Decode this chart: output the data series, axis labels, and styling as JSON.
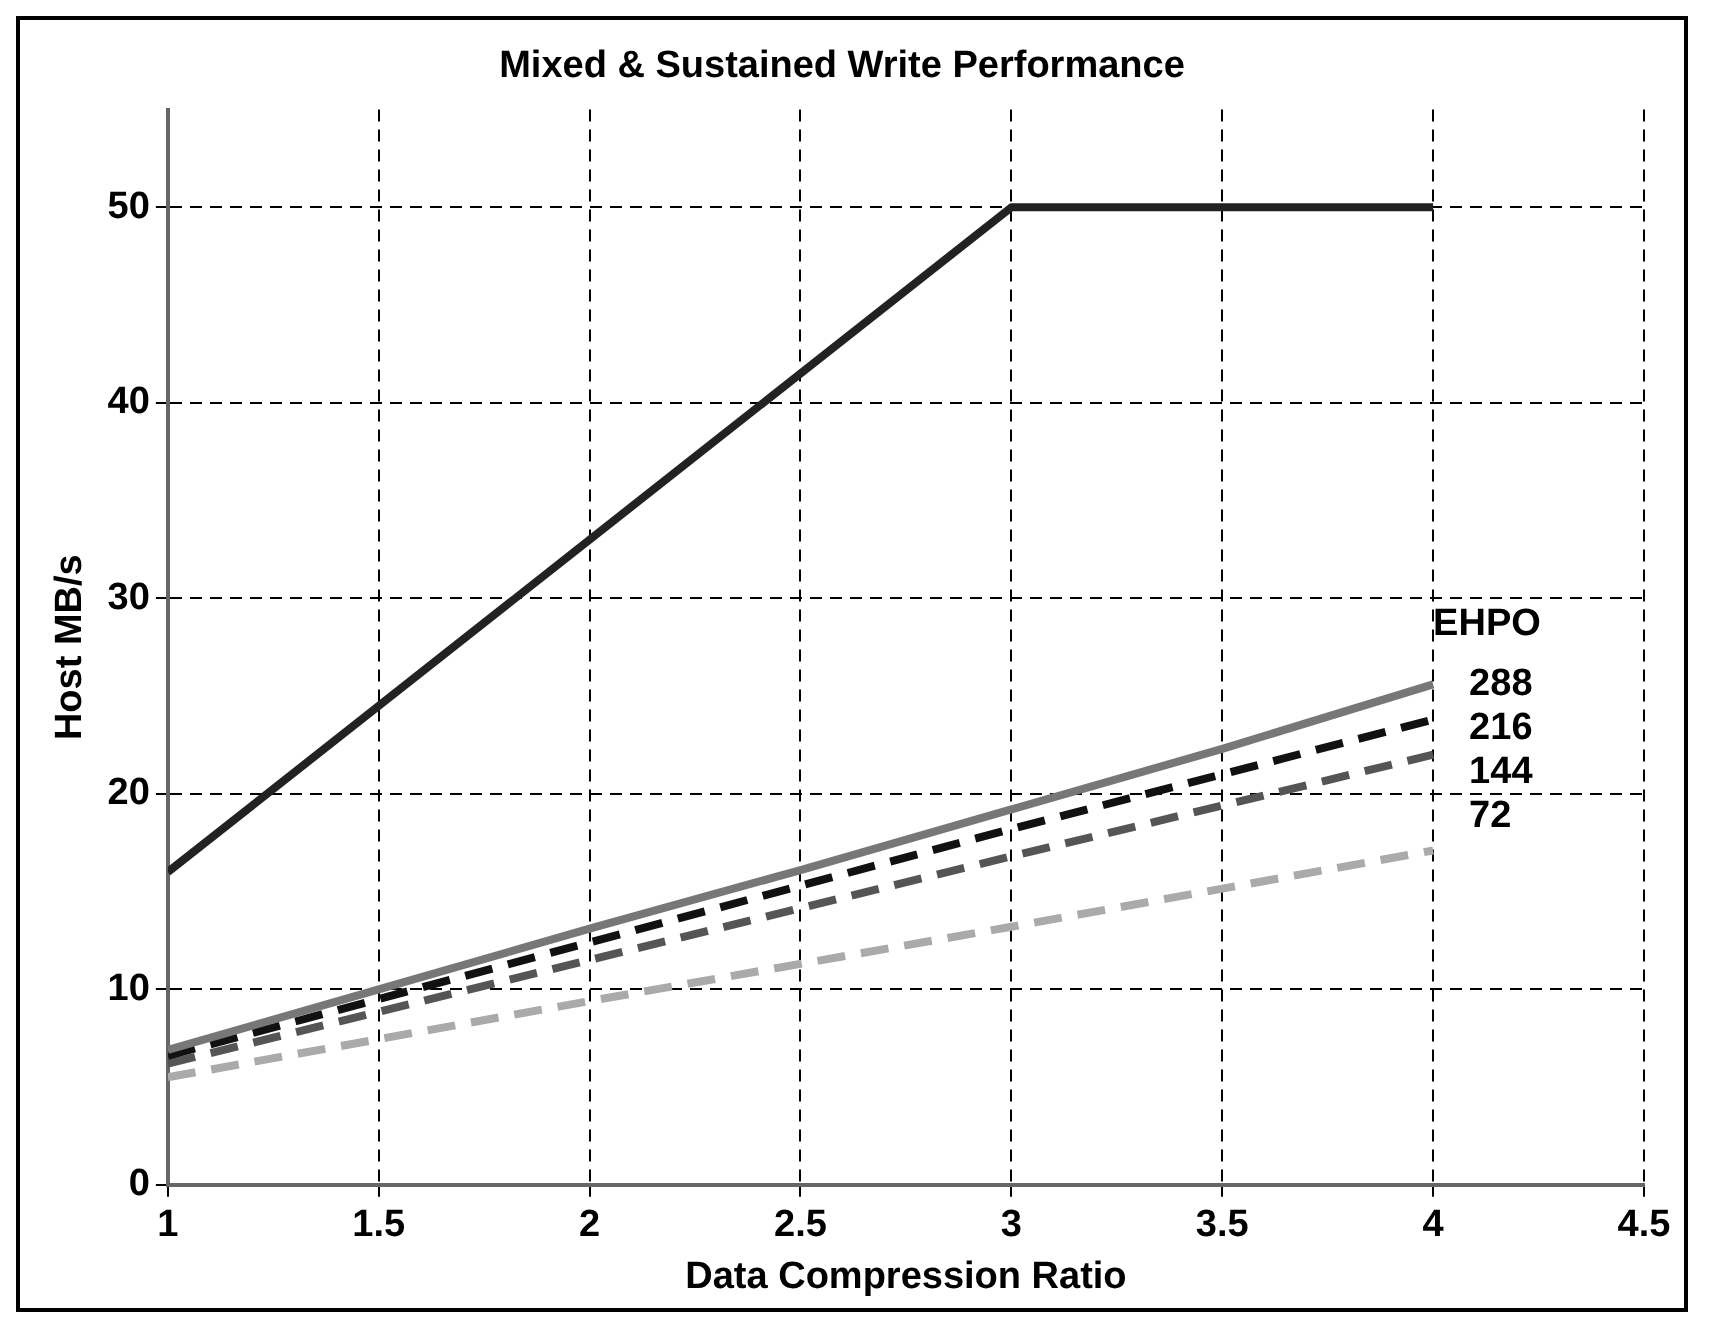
{
  "chart_data": {
    "type": "line",
    "title": "Mixed & Sustained Write Performance",
    "xlabel": "Data Compression Ratio",
    "ylabel": "Host MB/s",
    "legend_title": "EHPO",
    "xlim": [
      1,
      4.5
    ],
    "xticks": [
      1,
      1.5,
      2,
      2.5,
      3,
      3.5,
      4,
      4.5
    ],
    "ylim": [
      0,
      55
    ],
    "yticks": [
      0,
      10,
      20,
      30,
      40,
      50
    ],
    "grid": true,
    "legend": false,
    "marker": "none",
    "series": [
      {
        "color": "#222222",
        "line_style": "solid",
        "x": [
          1,
          3,
          4
        ],
        "values": [
          16,
          50,
          50
        ]
      },
      {
        "name": "288",
        "color": "#777777",
        "line_style": "solid",
        "x": [
          1,
          1.5,
          2,
          2.5,
          3,
          3.5,
          4
        ],
        "values": [
          6.9,
          10,
          13.1,
          16.1,
          19.2,
          22.3,
          25.6
        ]
      },
      {
        "name": "216",
        "color": "#111111",
        "line_style": "dashed",
        "x": [
          1,
          2,
          3,
          4
        ],
        "values": [
          6.6,
          12.4,
          18.2,
          23.8
        ]
      },
      {
        "name": "144",
        "color": "#555555",
        "line_style": "dashed",
        "x": [
          1,
          2,
          3,
          4
        ],
        "values": [
          6.2,
          11.5,
          16.8,
          22
        ]
      },
      {
        "name": "72",
        "color": "#aaaaaa",
        "line_style": "dashed",
        "x": [
          1,
          2,
          3,
          4
        ],
        "values": [
          5.5,
          9.4,
          13.2,
          17.1
        ]
      }
    ]
  }
}
